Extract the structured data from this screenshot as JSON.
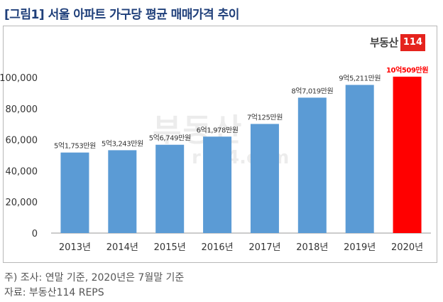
{
  "title": "[그림1] 서울 아파트 가구당 평균 매매가격 추이",
  "logo": {
    "korean": "부동산",
    "number": "114"
  },
  "watermark": {
    "korean": "부동산",
    "url": "r114.com"
  },
  "notes": {
    "line1": "주) 조사: 연말 기준, 2020년은 7월말 기준",
    "line2": "자료: 부동산114 REPS"
  },
  "chart_data": {
    "type": "bar",
    "categories": [
      "2013년",
      "2014년",
      "2015년",
      "2016년",
      "2017년",
      "2018년",
      "2019년",
      "2020년"
    ],
    "values": [
      51753,
      53243,
      56749,
      61978,
      70125,
      87019,
      95211,
      100509
    ],
    "data_labels": [
      "5억1,753만원",
      "5억3,243만원",
      "5억6,749만원",
      "6억1,978만원",
      "7억125만원",
      "8억7,019만원",
      "9억5,211만원",
      "10억509만원"
    ],
    "ylim": [
      0,
      100000
    ],
    "yticks": [
      0,
      20000,
      40000,
      60000,
      80000,
      100000
    ],
    "ytick_labels": [
      "0",
      "20,000",
      "40,000",
      "60,000",
      "80,000",
      "100,000"
    ],
    "grid": false,
    "colors": {
      "bar": "#5b9bd5",
      "highlight_bar": "#ff0000",
      "highlight_label": "#ff0000",
      "axis": "#9a9a9a"
    },
    "highlight_index": 7
  }
}
